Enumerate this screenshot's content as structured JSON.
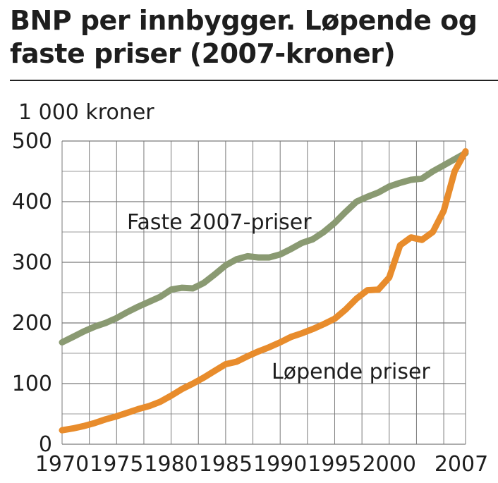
{
  "header": {
    "title_line1": "BNP per innbygger. Løpende og",
    "title_line2": "faste priser (2007-kroner)",
    "unit": "1 000 kroner"
  },
  "colors": {
    "fixed": "#8a9a72",
    "current": "#e88c2c",
    "grid": "#7a7a7a",
    "plot_bg": "#ffffff"
  },
  "chart_data": {
    "type": "line",
    "title": "BNP per innbygger. Løpende og faste priser (2007-kroner)",
    "ylabel": "1 000 kroner",
    "xlabel": "",
    "xlim": [
      1970,
      2007
    ],
    "ylim": [
      0,
      500
    ],
    "grid": true,
    "x_ticks": [
      1970,
      1975,
      1980,
      1985,
      1990,
      1995,
      2000,
      2007
    ],
    "x_tick_labels": [
      "1970",
      "1975",
      "1980",
      "1985",
      "1990",
      "1995",
      "2000",
      "2007"
    ],
    "y_ticks": [
      0,
      100,
      200,
      300,
      400,
      500
    ],
    "y_tick_labels": [
      "0",
      "100",
      "200",
      "300",
      "400",
      "500"
    ],
    "x": [
      1970,
      1971,
      1972,
      1973,
      1974,
      1975,
      1976,
      1977,
      1978,
      1979,
      1980,
      1981,
      1982,
      1983,
      1984,
      1985,
      1986,
      1987,
      1988,
      1989,
      1990,
      1991,
      1992,
      1993,
      1994,
      1995,
      1996,
      1997,
      1998,
      1999,
      2000,
      2001,
      2002,
      2003,
      2004,
      2005,
      2006,
      2007
    ],
    "series": [
      {
        "name": "Faste 2007-priser",
        "label": "Faste 2007-priser",
        "values": [
          168,
          177,
          186,
          194,
          200,
          208,
          218,
          227,
          235,
          243,
          255,
          258,
          257,
          266,
          280,
          295,
          305,
          310,
          308,
          308,
          313,
          322,
          332,
          338,
          350,
          365,
          383,
          400,
          408,
          415,
          425,
          431,
          436,
          438,
          450,
          460,
          470,
          480
        ]
      },
      {
        "name": "Løpende priser",
        "label": "Løpende priser",
        "values": [
          23,
          26,
          30,
          35,
          41,
          46,
          52,
          58,
          63,
          70,
          80,
          91,
          100,
          110,
          121,
          132,
          136,
          145,
          153,
          160,
          168,
          177,
          183,
          190,
          198,
          207,
          222,
          240,
          254,
          255,
          275,
          328,
          341,
          337,
          350,
          385,
          450,
          483
        ]
      }
    ]
  }
}
